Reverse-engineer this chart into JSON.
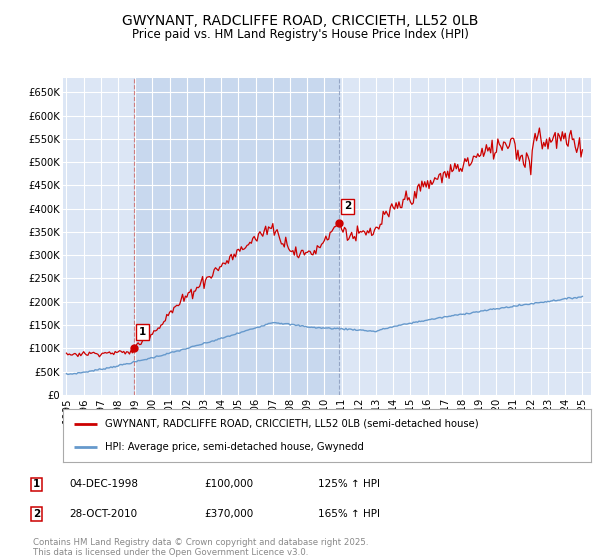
{
  "title": "GWYNANT, RADCLIFFE ROAD, CRICCIETH, LL52 0LB",
  "subtitle": "Price paid vs. HM Land Registry's House Price Index (HPI)",
  "title_fontsize": 10,
  "subtitle_fontsize": 8.5,
  "background_color": "#ffffff",
  "plot_bg_color": "#dce6f5",
  "shade_color": "#c8d8ee",
  "grid_color": "#ffffff",
  "ylabel_ticks": [
    "£0",
    "£50K",
    "£100K",
    "£150K",
    "£200K",
    "£250K",
    "£300K",
    "£350K",
    "£400K",
    "£450K",
    "£500K",
    "£550K",
    "£600K",
    "£650K"
  ],
  "ytick_values": [
    0,
    50000,
    100000,
    150000,
    200000,
    250000,
    300000,
    350000,
    400000,
    450000,
    500000,
    550000,
    600000,
    650000
  ],
  "xmin": 1994.8,
  "xmax": 2025.5,
  "ymin": 0,
  "ymax": 680000,
  "red_line_color": "#cc0000",
  "blue_line_color": "#6699cc",
  "marker1_x": 1998.92,
  "marker1_y": 100000,
  "marker2_x": 2010.83,
  "marker2_y": 370000,
  "marker1_label": "1",
  "marker2_label": "2",
  "vline1_x": 1998.92,
  "vline2_x": 2010.83,
  "legend_entry1": "GWYNANT, RADCLIFFE ROAD, CRICCIETH, LL52 0LB (semi-detached house)",
  "legend_entry2": "HPI: Average price, semi-detached house, Gwynedd",
  "table_row1": [
    "1",
    "04-DEC-1998",
    "£100,000",
    "125% ↑ HPI"
  ],
  "table_row2": [
    "2",
    "28-OCT-2010",
    "£370,000",
    "165% ↑ HPI"
  ],
  "footer": "Contains HM Land Registry data © Crown copyright and database right 2025.\nThis data is licensed under the Open Government Licence v3.0.",
  "xticks": [
    1995,
    1996,
    1997,
    1998,
    1999,
    2000,
    2001,
    2002,
    2003,
    2004,
    2005,
    2006,
    2007,
    2008,
    2009,
    2010,
    2011,
    2012,
    2013,
    2014,
    2015,
    2016,
    2017,
    2018,
    2019,
    2020,
    2021,
    2022,
    2023,
    2024,
    2025
  ]
}
